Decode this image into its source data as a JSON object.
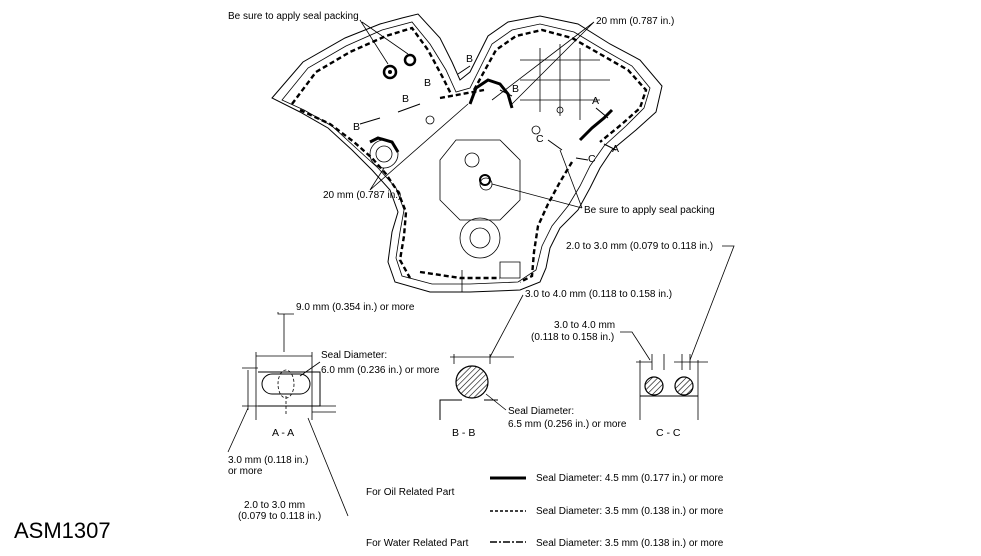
{
  "labels": {
    "seal_packing_top": "Be sure to apply seal packing",
    "seal_packing_right": "Be sure to apply seal packing",
    "width_20mm_top": "20 mm (0.787 in.)",
    "width_20mm_left": "20 mm (0.787 in.)",
    "section_mark_a": "A",
    "section_mark_b": "B",
    "section_mark_c": "C",
    "aa_width": "9.0 mm (0.354 in.) or more",
    "aa_seal_line1": "Seal Diameter:",
    "aa_seal_line2": "6.0 mm (0.236 in.) or more",
    "aa_height_line1": "3.0 mm (0.118 in.)",
    "aa_height_line2": "or more",
    "aa_offset_line1": "2.0 to 3.0 mm",
    "aa_offset_line2": "(0.079 to 0.118 in.)",
    "bb_width": "3.0 to 4.0 mm (0.118 to 0.158 in.)",
    "bb_seal_line1": "Seal Diameter:",
    "bb_seal_line2": "6.5 mm (0.256 in.) or more",
    "cc_gap": "2.0 to 3.0 mm (0.079 to 0.118 in.) ",
    "cc_width_line1": "3.0 to 4.0 mm",
    "cc_width_line2": "(0.118 to 0.158 in.)"
  },
  "sections": {
    "aa": "A - A",
    "bb": "B - B",
    "cc": "C - C"
  },
  "legend": {
    "oil_part": "For Oil Related Part",
    "water_part": "For Water Related Part",
    "solid": "Seal Diameter: 4.5 mm (0.177 in.) or more",
    "dashed": "Seal Diameter: 3.5 mm (0.138 in.) or more",
    "dashdot": "Seal Diameter: 3.5 mm (0.138 in.) or more"
  },
  "figure_id": "ASM1307"
}
